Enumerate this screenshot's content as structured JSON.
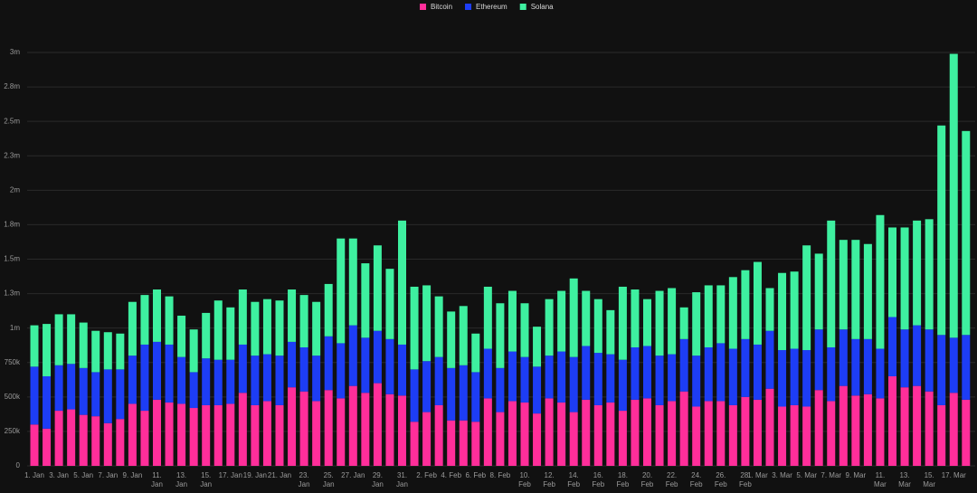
{
  "chart_data": {
    "type": "stacked-bar",
    "categories": [
      "1. Jan",
      null,
      "3. Jan",
      null,
      "5. Jan",
      null,
      "7. Jan",
      null,
      "9. Jan",
      null,
      "11. Jan",
      null,
      "13. Jan",
      null,
      "15. Jan",
      null,
      "17. Jan",
      null,
      "19. Jan",
      null,
      "21. Jan",
      null,
      "23. Jan",
      null,
      "25. Jan",
      null,
      "27. Jan",
      null,
      "29. Jan",
      null,
      "31. Jan",
      null,
      "2. Feb",
      null,
      "4. Feb",
      null,
      "6. Feb",
      null,
      "8. Feb",
      null,
      "10. Feb",
      null,
      "12. Feb",
      null,
      "14. Feb",
      null,
      "16. Feb",
      null,
      "18. Feb",
      null,
      "20. Feb",
      null,
      "22. Feb",
      null,
      "24. Feb",
      null,
      "26. Feb",
      null,
      "28. Feb",
      "1. Mar",
      null,
      "3. Mar",
      null,
      "5. Mar",
      null,
      "7. Mar",
      null,
      "9. Mar",
      null,
      "11. Mar",
      null,
      "13. Mar",
      null,
      "15. Mar",
      null,
      "17. Mar",
      null
    ],
    "series": [
      {
        "name": "Bitcoin",
        "color": "#ff2e9a",
        "values": [
          300000,
          270000,
          400000,
          410000,
          370000,
          360000,
          310000,
          340000,
          450000,
          400000,
          480000,
          460000,
          450000,
          420000,
          440000,
          440000,
          450000,
          530000,
          440000,
          470000,
          440000,
          570000,
          540000,
          470000,
          550000,
          490000,
          580000,
          530000,
          600000,
          520000,
          510000,
          320000,
          390000,
          440000,
          330000,
          330000,
          320000,
          490000,
          390000,
          470000,
          460000,
          380000,
          490000,
          460000,
          390000,
          480000,
          440000,
          460000,
          400000,
          480000,
          490000,
          440000,
          470000,
          540000,
          430000,
          470000,
          470000,
          440000,
          500000,
          480000,
          560000,
          430000,
          440000,
          430000,
          550000,
          470000,
          580000,
          510000,
          520000,
          490000,
          650000,
          570000,
          580000,
          540000,
          440000,
          530000,
          480000
        ]
      },
      {
        "name": "Ethereum",
        "color": "#1d3df5",
        "values": [
          420000,
          380000,
          330000,
          330000,
          340000,
          320000,
          390000,
          360000,
          350000,
          480000,
          420000,
          420000,
          340000,
          260000,
          340000,
          330000,
          320000,
          350000,
          360000,
          340000,
          360000,
          330000,
          320000,
          330000,
          390000,
          400000,
          440000,
          400000,
          380000,
          400000,
          370000,
          380000,
          370000,
          350000,
          380000,
          400000,
          360000,
          360000,
          320000,
          360000,
          330000,
          340000,
          310000,
          370000,
          400000,
          390000,
          380000,
          350000,
          370000,
          380000,
          380000,
          360000,
          340000,
          380000,
          370000,
          390000,
          420000,
          410000,
          420000,
          400000,
          420000,
          410000,
          410000,
          410000,
          440000,
          390000,
          410000,
          410000,
          400000,
          360000,
          430000,
          420000,
          440000,
          450000,
          510000,
          400000,
          470000
        ]
      },
      {
        "name": "Solana",
        "color": "#3ef0a0",
        "values": [
          300000,
          380000,
          370000,
          360000,
          330000,
          300000,
          270000,
          260000,
          390000,
          360000,
          380000,
          350000,
          300000,
          310000,
          330000,
          430000,
          380000,
          400000,
          390000,
          400000,
          400000,
          380000,
          380000,
          390000,
          380000,
          760000,
          630000,
          540000,
          620000,
          510000,
          900000,
          600000,
          550000,
          440000,
          410000,
          430000,
          280000,
          450000,
          470000,
          440000,
          390000,
          290000,
          410000,
          440000,
          570000,
          400000,
          390000,
          320000,
          530000,
          420000,
          340000,
          470000,
          480000,
          230000,
          460000,
          450000,
          420000,
          520000,
          500000,
          600000,
          310000,
          560000,
          560000,
          760000,
          550000,
          920000,
          650000,
          720000,
          690000,
          970000,
          650000,
          740000,
          760000,
          800000,
          1520000,
          2060000,
          1480000
        ]
      }
    ],
    "ylim": [
      0,
      3000000
    ],
    "yticks": [
      0,
      {
        "value": 250000,
        "label": "250k"
      },
      {
        "value": 500000,
        "label": "500k"
      },
      {
        "value": 750000,
        "label": "750k"
      },
      {
        "value": 1000000,
        "label": "1m"
      },
      {
        "value": 1250000,
        "label": "1.3m"
      },
      {
        "value": 1500000,
        "label": "1.5m"
      },
      {
        "value": 1750000,
        "label": "1.8m"
      },
      {
        "value": 2000000,
        "label": "2m"
      },
      {
        "value": 2250000,
        "label": "2.3m"
      },
      {
        "value": 2500000,
        "label": "2.5m"
      },
      {
        "value": 2750000,
        "label": "2.8m"
      },
      {
        "value": 3000000,
        "label": "3m"
      }
    ],
    "grid": true,
    "legend": "top"
  }
}
